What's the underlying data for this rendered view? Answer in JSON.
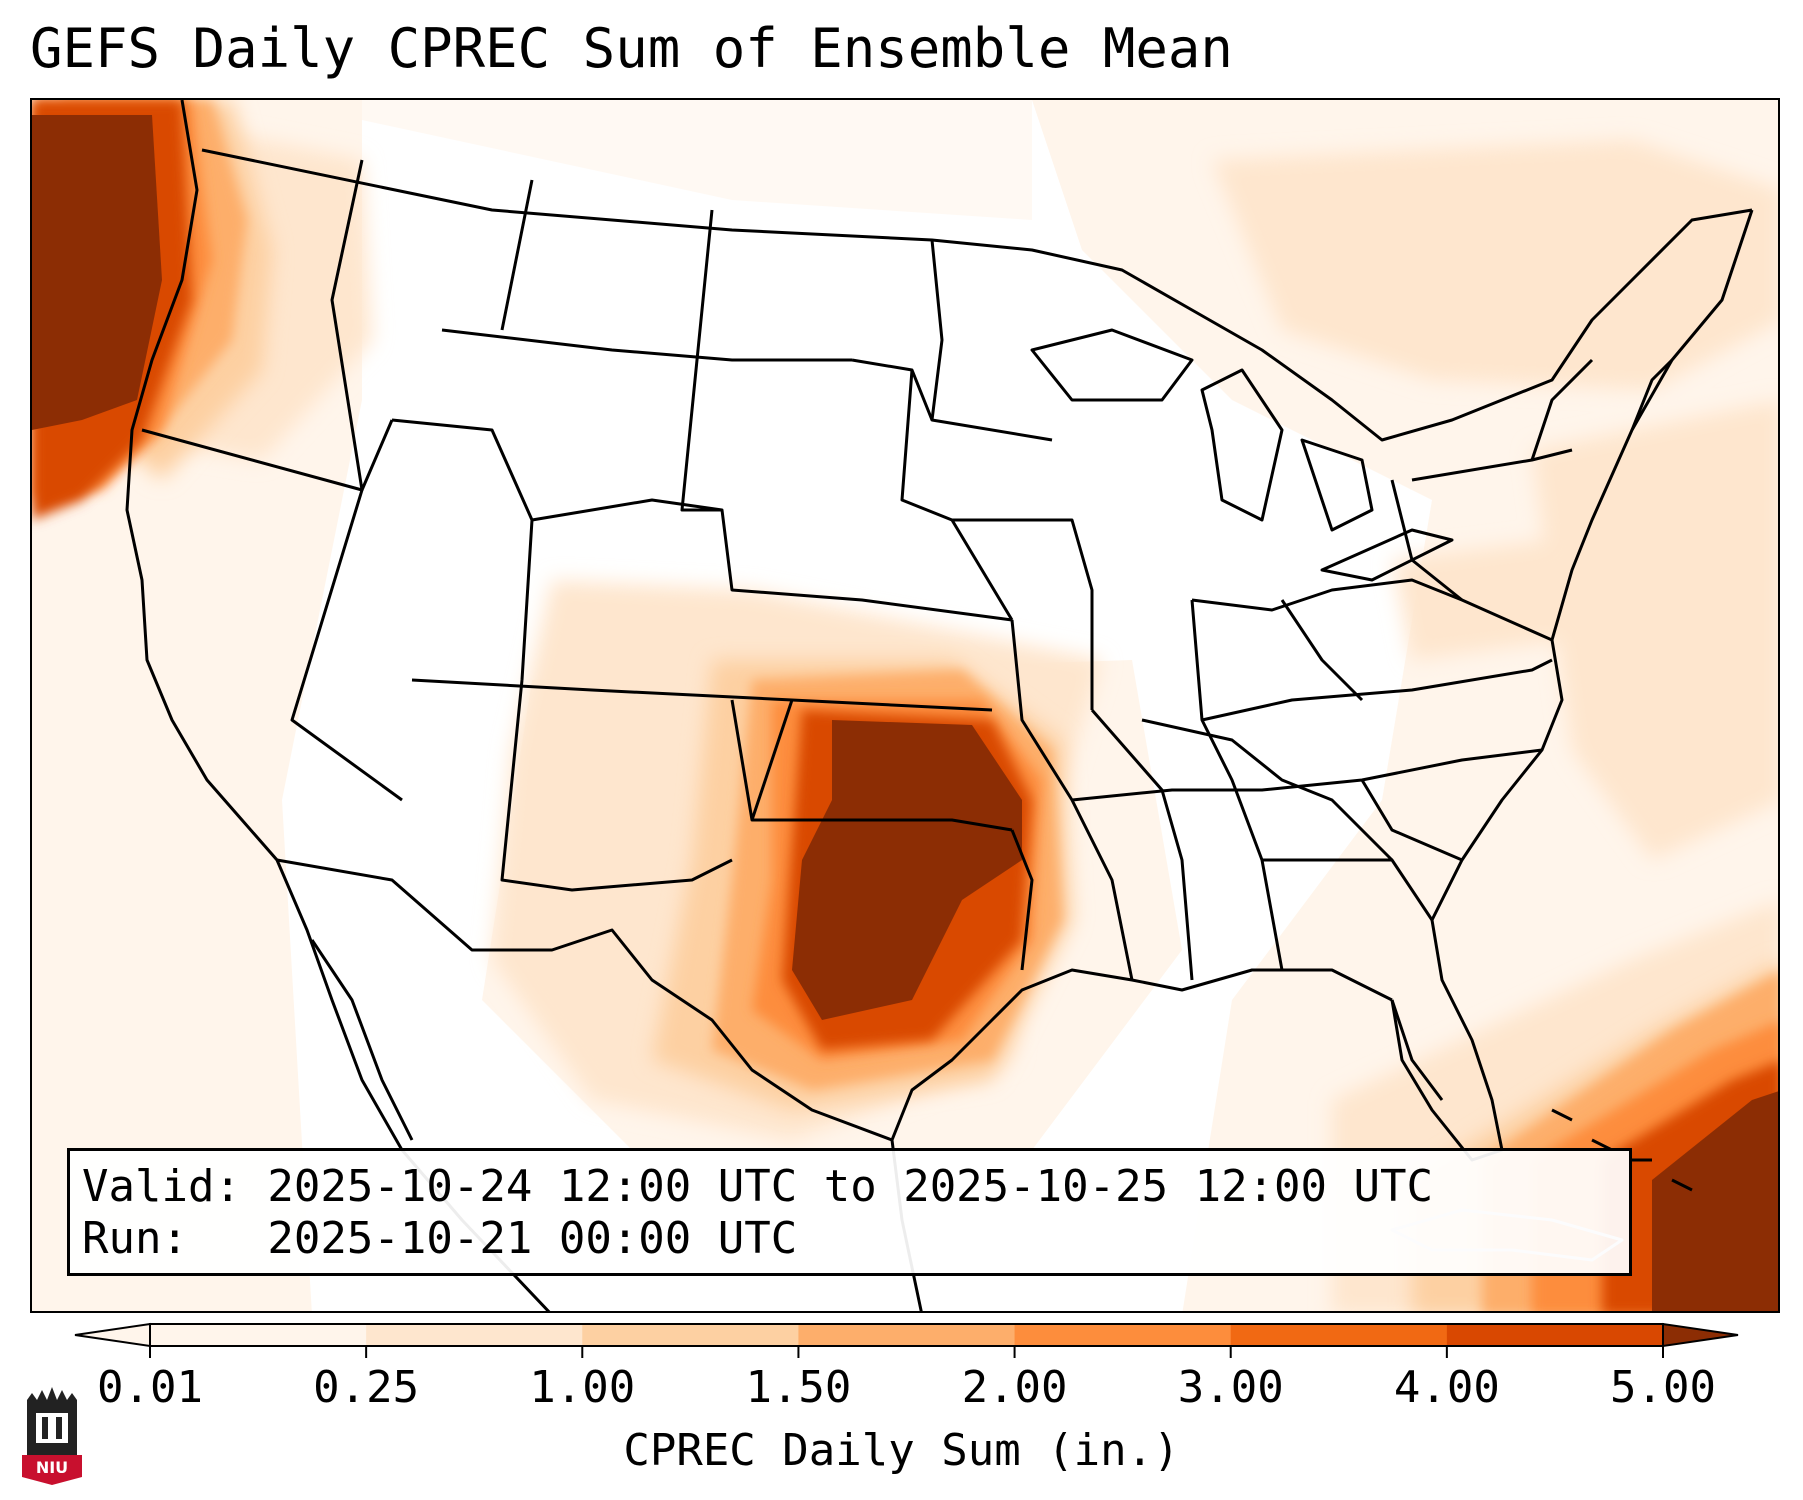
{
  "title": "GEFS Daily CPREC Sum of Ensemble Mean",
  "valid_line": "Valid: 2025-10-24 12:00 UTC to 2025-10-25 12:00 UTC",
  "run_line": "Run:   2025-10-21 00:00 UTC",
  "colorbar": {
    "label": "CPREC Daily Sum (in.)",
    "ticks": [
      "0.01",
      "0.25",
      "1.00",
      "1.50",
      "2.00",
      "3.00",
      "4.00",
      "5.00"
    ],
    "colors": [
      "#fff5eb",
      "#fee6ce",
      "#fdd0a2",
      "#fdae6b",
      "#fd8d3c",
      "#f16913",
      "#d94801",
      "#8c2d04"
    ]
  },
  "logo": {
    "text": "NIU",
    "icon": "niu-castle-logo"
  },
  "map": {
    "projection": "lambert-conformal",
    "region": "CONUS",
    "precip_max_color": "#8c2d04",
    "heavy_areas": [
      "Pacific Northwest coast",
      "Kansas-Oklahoma-Texas",
      "Western Atlantic / Bahamas"
    ]
  }
}
